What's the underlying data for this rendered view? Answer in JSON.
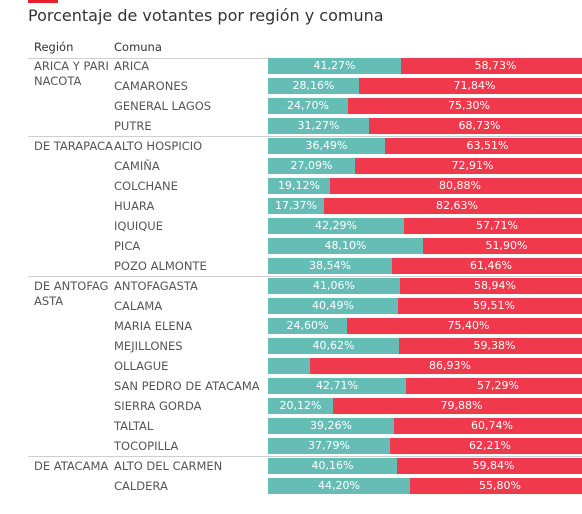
{
  "title": "Porcentaje de votantes por región y comuna",
  "headers": {
    "region": "Región",
    "comuna": "Comuna"
  },
  "colors": {
    "first_option": "#66bdb6",
    "second_option": "#f0394c",
    "accent": "#e4202f"
  },
  "chart_data": {
    "type": "bar",
    "stacked": true,
    "orientation": "horizontal",
    "xlim": [
      0,
      100
    ],
    "rows": [
      {
        "region": "ARICA Y PARINACOTA",
        "comuna": "ARICA",
        "a": 41.27,
        "b": 58.73,
        "a_label": "41,27%",
        "b_label": "58,73%"
      },
      {
        "region": "ARICA Y PARINACOTA",
        "comuna": "CAMARONES",
        "a": 28.16,
        "b": 71.84,
        "a_label": "28,16%",
        "b_label": "71,84%"
      },
      {
        "region": "ARICA Y PARINACOTA",
        "comuna": "GENERAL LAGOS",
        "a": 24.7,
        "b": 75.3,
        "a_label": "24,70%",
        "b_label": "75,30%"
      },
      {
        "region": "ARICA Y PARINACOTA",
        "comuna": "PUTRE",
        "a": 31.27,
        "b": 68.73,
        "a_label": "31,27%",
        "b_label": "68,73%"
      },
      {
        "region": "DE TARAPACA",
        "comuna": "ALTO HOSPICIO",
        "a": 36.49,
        "b": 63.51,
        "a_label": "36,49%",
        "b_label": "63,51%"
      },
      {
        "region": "DE TARAPACA",
        "comuna": "CAMIÑA",
        "a": 27.09,
        "b": 72.91,
        "a_label": "27,09%",
        "b_label": "72,91%"
      },
      {
        "region": "DE TARAPACA",
        "comuna": "COLCHANE",
        "a": 19.12,
        "b": 80.88,
        "a_label": "19,12%",
        "b_label": "80,88%"
      },
      {
        "region": "DE TARAPACA",
        "comuna": "HUARA",
        "a": 17.37,
        "b": 82.63,
        "a_label": "17,37%",
        "b_label": "82,63%"
      },
      {
        "region": "DE TARAPACA",
        "comuna": "IQUIQUE",
        "a": 42.29,
        "b": 57.71,
        "a_label": "42,29%",
        "b_label": "57,71%"
      },
      {
        "region": "DE TARAPACA",
        "comuna": "PICA",
        "a": 48.1,
        "b": 51.9,
        "a_label": "48,10%",
        "b_label": "51,90%"
      },
      {
        "region": "DE TARAPACA",
        "comuna": "POZO ALMONTE",
        "a": 38.54,
        "b": 61.46,
        "a_label": "38,54%",
        "b_label": "61,46%"
      },
      {
        "region": "DE ANTOFAGASTA",
        "comuna": "ANTOFAGASTA",
        "a": 41.06,
        "b": 58.94,
        "a_label": "41,06%",
        "b_label": "58,94%"
      },
      {
        "region": "DE ANTOFAGASTA",
        "comuna": "CALAMA",
        "a": 40.49,
        "b": 59.51,
        "a_label": "40,49%",
        "b_label": "59,51%"
      },
      {
        "region": "DE ANTOFAGASTA",
        "comuna": "MARIA ELENA",
        "a": 24.6,
        "b": 75.4,
        "a_label": "24,60%",
        "b_label": "75,40%"
      },
      {
        "region": "DE ANTOFAGASTA",
        "comuna": "MEJILLONES",
        "a": 40.62,
        "b": 59.38,
        "a_label": "40,62%",
        "b_label": "59,38%"
      },
      {
        "region": "DE ANTOFAGASTA",
        "comuna": "OLLAGUE",
        "a": 13.07,
        "b": 86.93,
        "a_label": "",
        "b_label": "86,93%"
      },
      {
        "region": "DE ANTOFAGASTA",
        "comuna": "SAN PEDRO DE ATACAMA",
        "a": 42.71,
        "b": 57.29,
        "a_label": "42,71%",
        "b_label": "57,29%"
      },
      {
        "region": "DE ANTOFAGASTA",
        "comuna": "SIERRA GORDA",
        "a": 20.12,
        "b": 79.88,
        "a_label": "20,12%",
        "b_label": "79,88%"
      },
      {
        "region": "DE ANTOFAGASTA",
        "comuna": "TALTAL",
        "a": 39.26,
        "b": 60.74,
        "a_label": "39,26%",
        "b_label": "60,74%"
      },
      {
        "region": "DE ANTOFAGASTA",
        "comuna": "TOCOPILLA",
        "a": 37.79,
        "b": 62.21,
        "a_label": "37,79%",
        "b_label": "62,21%"
      },
      {
        "region": "DE ATACAMA",
        "comuna": "ALTO DEL CARMEN",
        "a": 40.16,
        "b": 59.84,
        "a_label": "40,16%",
        "b_label": "59,84%"
      },
      {
        "region": "DE ATACAMA",
        "comuna": "CALDERA",
        "a": 44.2,
        "b": 55.8,
        "a_label": "44,20%",
        "b_label": "55,80%"
      }
    ]
  }
}
